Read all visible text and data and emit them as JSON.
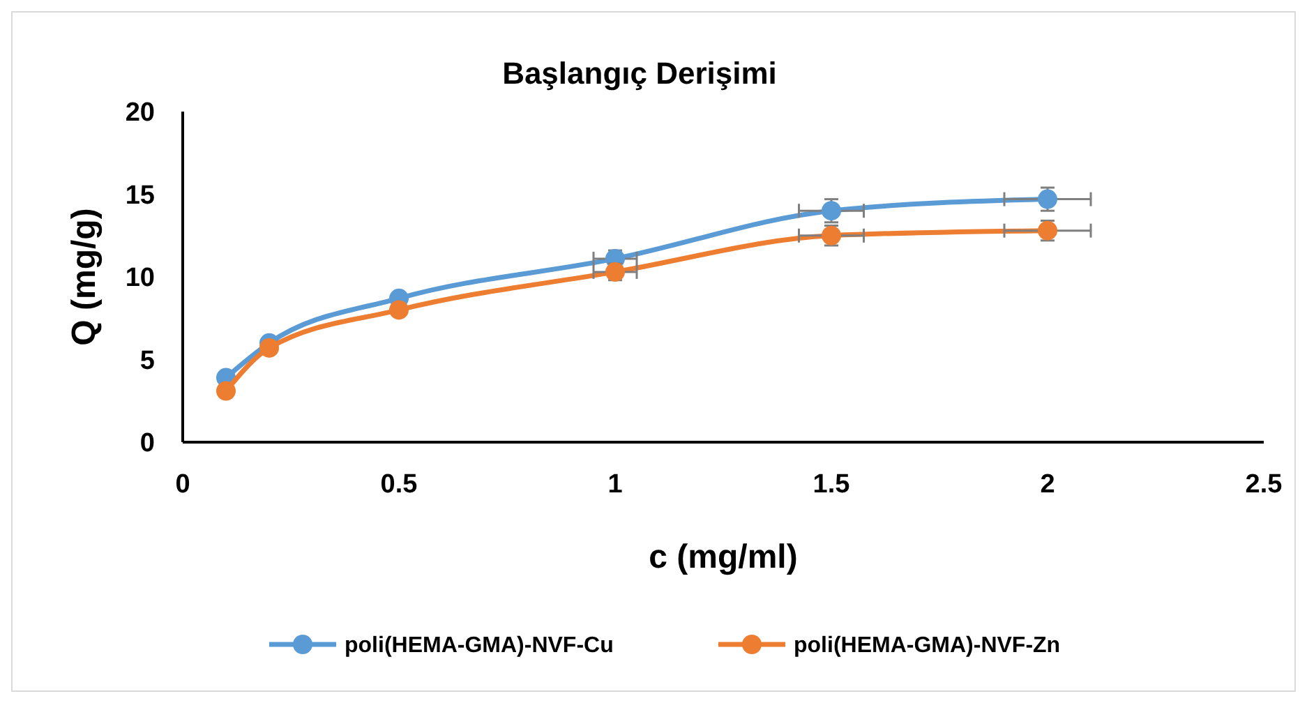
{
  "chart_data": {
    "type": "line",
    "title": "Başlangıç Derişimi",
    "xlabel": "c (mg/ml)",
    "ylabel": "Q (mg/g)",
    "x": [
      0.1,
      0.2,
      0.5,
      1,
      1.5,
      2
    ],
    "series": [
      {
        "name": "poli(HEMA-GMA)-NVF-Cu",
        "color": "#5b9bd5",
        "values": [
          3.9,
          6.0,
          8.7,
          11.1,
          14.0,
          14.7
        ],
        "errors": [
          null,
          null,
          null,
          0.5,
          0.7,
          0.7
        ],
        "xerrors": [
          null,
          null,
          null,
          0.05,
          0.075,
          0.1
        ]
      },
      {
        "name": "poli(HEMA-GMA)-NVF-Zn",
        "color": "#ed7d31",
        "values": [
          3.1,
          5.7,
          8.0,
          10.3,
          12.5,
          12.8
        ],
        "errors": [
          null,
          null,
          null,
          0.5,
          0.6,
          0.6
        ],
        "xerrors": [
          null,
          null,
          null,
          0.05,
          0.075,
          0.1
        ]
      }
    ],
    "xlim": [
      0,
      2.5
    ],
    "xticks": [
      0,
      0.5,
      1,
      1.5,
      2,
      2.5
    ],
    "ylim": [
      0,
      20
    ],
    "yticks": [
      0,
      5,
      10,
      15,
      20
    ],
    "grid": false,
    "legend": "bottom",
    "marker": "circle",
    "line_style": "solid"
  }
}
